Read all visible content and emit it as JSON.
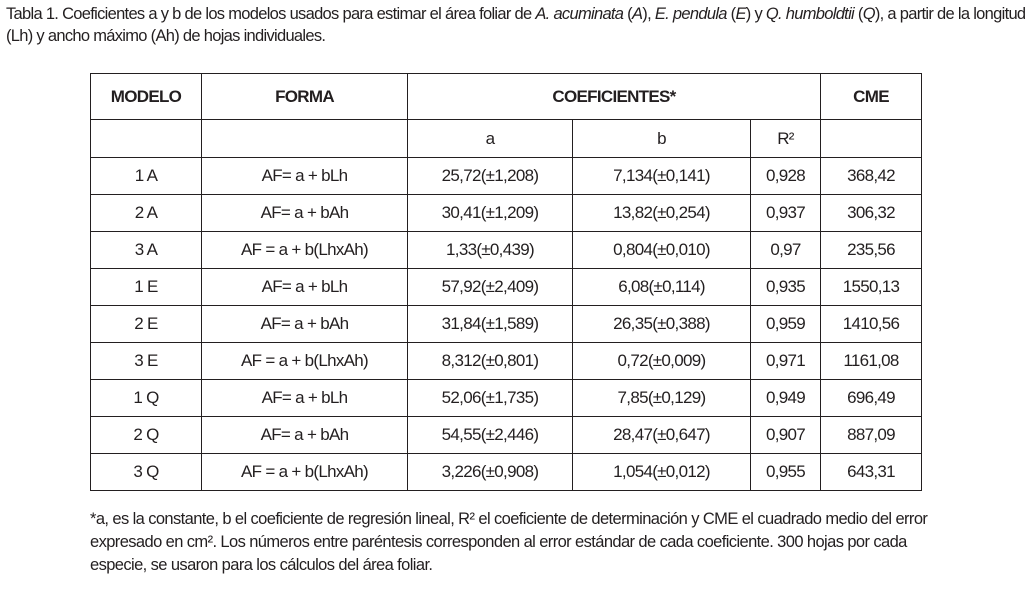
{
  "caption": {
    "prefix": "Tabla 1. Coeficientes a y b de los modelos usados para estimar el área foliar de ",
    "sp1": "A. acuminata",
    "mid1": " (",
    "code1": "A",
    "mid2": "), ",
    "sp2": "E. pendula",
    "mid3": " (",
    "code2": "E",
    "mid4": ") y ",
    "sp3": "Q. humboldtii",
    "mid5": " (",
    "code3": "Q",
    "suffix": "), a partir de la longitud (Lh) y ancho máximo (Ah) de hojas individuales."
  },
  "table": {
    "headers": {
      "modelo": "MODELO",
      "forma": "FORMA",
      "coeficientes": "COEFICIENTES*",
      "cme": "CME"
    },
    "subheaders": {
      "a": "a",
      "b": "b",
      "r2": "R²"
    },
    "rows": [
      {
        "modelo": "1 A",
        "forma": "AF= a + bLh",
        "a": "25,72(±1,208)",
        "b": "7,134(±0,141)",
        "r2": "0,928",
        "cme": "368,42"
      },
      {
        "modelo": "2 A",
        "forma": "AF= a + bAh",
        "a": "30,41(±1,209)",
        "b": "13,82(±0,254)",
        "r2": "0,937",
        "cme": "306,32"
      },
      {
        "modelo": "3 A",
        "forma": "AF = a + b(LhxAh)",
        "a": "1,33(±0,439)",
        "b": "0,804(±0,010)",
        "r2": "0,97",
        "cme": "235,56"
      },
      {
        "modelo": "1 E",
        "forma": "AF= a + bLh",
        "a": "57,92(±2,409)",
        "b": "6,08(±0,114)",
        "r2": "0,935",
        "cme": "1550,13"
      },
      {
        "modelo": "2 E",
        "forma": "AF= a + bAh",
        "a": "31,84(±1,589)",
        "b": "26,35(±0,388)",
        "r2": "0,959",
        "cme": "1410,56"
      },
      {
        "modelo": "3 E",
        "forma": "AF = a + b(LhxAh)",
        "a": "8,312(±0,801)",
        "b": "0,72(±0,009)",
        "r2": "0,971",
        "cme": "1161,08"
      },
      {
        "modelo": "1 Q",
        "forma": "AF= a + bLh",
        "a": "52,06(±1,735)",
        "b": "7,85(±0,129)",
        "r2": "0,949",
        "cme": "696,49"
      },
      {
        "modelo": "2 Q",
        "forma": "AF= a + bAh",
        "a": "54,55(±2,446)",
        "b": "28,47(±0,647)",
        "r2": "0,907",
        "cme": "887,09"
      },
      {
        "modelo": "3 Q",
        "forma": "AF = a + b(LhxAh)",
        "a": "3,226(±0,908)",
        "b": "1,054(±0,012)",
        "r2": "0,955",
        "cme": "643,31"
      }
    ]
  },
  "footnote": "*a, es la constante, b el coeficiente de regresión lineal, R² el coeficiente de determinación y CME el cuadrado medio del error expresado en cm². Los números entre paréntesis corresponden al error estándar de cada coeficiente. 300 hojas por cada especie, se usaron para los cálculos del área foliar."
}
